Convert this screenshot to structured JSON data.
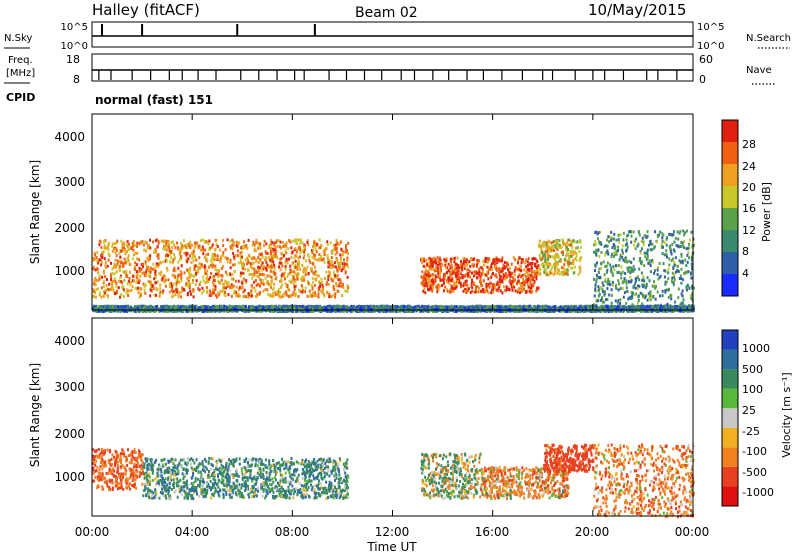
{
  "header": {
    "station": "Halley (fitACF)",
    "beam": "Beam 02",
    "date": "10/May/2015"
  },
  "params": {
    "nsky_label": "N.Sky",
    "nsearch_label": "N.Search",
    "freq_label_1": "Freq.",
    "freq_label_2": "[MHz]",
    "nave_label": "Nave",
    "cpid_label": "CPID",
    "cpid_value": "normal (fast) 151",
    "noise_ticks": [
      "10^5",
      "10^0"
    ],
    "freq_ticks": [
      "18",
      "8"
    ],
    "nave_ticks": [
      "60",
      "0"
    ]
  },
  "xaxis": {
    "label": "Time UT",
    "ticks": [
      "00:00",
      "04:00",
      "08:00",
      "12:00",
      "16:00",
      "20:00",
      "00:00"
    ]
  },
  "power_panel": {
    "ylabel": "Slant Range [km]",
    "yticks": [
      "1000",
      "2000",
      "3000",
      "4000"
    ],
    "colorbar_label": "Power [dB]",
    "colorbar_ticks": [
      "4",
      "8",
      "12",
      "16",
      "20",
      "24",
      "28"
    ],
    "colors": [
      "#1a2bff",
      "#2f5fa8",
      "#3a8a6e",
      "#5aa14a",
      "#c7c92a",
      "#f0a020",
      "#f06010",
      "#e02010"
    ]
  },
  "velocity_panel": {
    "ylabel": "Slant Range [km]",
    "yticks": [
      "1000",
      "2000",
      "3000",
      "4000"
    ],
    "colorbar_label": "Velocity [m s⁻¹]",
    "colorbar_ticks": [
      "1000",
      "500",
      "100",
      "25",
      "-25",
      "-100",
      "-500",
      "-1000"
    ],
    "colors": [
      "#2040c0",
      "#2e6e9e",
      "#3a8a5e",
      "#58b83a",
      "#c8c8c8",
      "#f0b020",
      "#f08020",
      "#e84020",
      "#e01010"
    ]
  },
  "chart_data": [
    {
      "type": "heatmap",
      "title": "Power",
      "xlabel": "Time UT",
      "ylabel": "Slant Range [km]",
      "xlim": [
        "00:00",
        "24:00"
      ],
      "ylim": [
        180,
        4600
      ],
      "colorbar": {
        "label": "Power [dB]",
        "range": [
          0,
          30
        ],
        "ticks": [
          4,
          8,
          12,
          16,
          20,
          24,
          28
        ]
      },
      "scatter_regions": [
        {
          "t_start": 0.0,
          "t_end": 10.2,
          "range_low": 500,
          "range_high": 1800,
          "power_db": 22
        },
        {
          "t_start": 13.1,
          "t_end": 17.8,
          "range_low": 600,
          "range_high": 1400,
          "power_db": 26
        },
        {
          "t_start": 17.8,
          "t_end": 19.5,
          "range_low": 1000,
          "range_high": 1800,
          "power_db": 18
        },
        {
          "t_start": 20.0,
          "t_end": 24.0,
          "range_low": 200,
          "range_high": 2000,
          "power_db": 10
        },
        {
          "t_start": 0.0,
          "t_end": 24.0,
          "range_low": 180,
          "range_high": 300,
          "power_db": 8
        }
      ]
    },
    {
      "type": "heatmap",
      "title": "Velocity",
      "xlabel": "Time UT",
      "ylabel": "Slant Range [km]",
      "xlim": [
        "00:00",
        "24:00"
      ],
      "ylim": [
        180,
        4600
      ],
      "colorbar": {
        "label": "Velocity [m s⁻¹]",
        "range": [
          -1000,
          1000
        ],
        "ticks": [
          1000,
          500,
          100,
          25,
          -25,
          -100,
          -500,
          -1000
        ]
      },
      "scatter_regions": [
        {
          "t_start": 0.0,
          "t_end": 2.0,
          "range_low": 800,
          "range_high": 1700,
          "velocity": -300
        },
        {
          "t_start": 2.0,
          "t_end": 10.2,
          "range_low": 600,
          "range_high": 1500,
          "velocity": 200
        },
        {
          "t_start": 13.1,
          "t_end": 15.5,
          "range_low": 600,
          "range_high": 1600,
          "velocity": 50
        },
        {
          "t_start": 15.5,
          "t_end": 19.0,
          "range_low": 600,
          "range_high": 1300,
          "velocity": -150
        },
        {
          "t_start": 18.0,
          "t_end": 20.0,
          "range_low": 1200,
          "range_high": 1800,
          "velocity": -500
        },
        {
          "t_start": 20.0,
          "t_end": 24.0,
          "range_low": 200,
          "range_high": 1800,
          "velocity": -200
        }
      ]
    }
  ]
}
